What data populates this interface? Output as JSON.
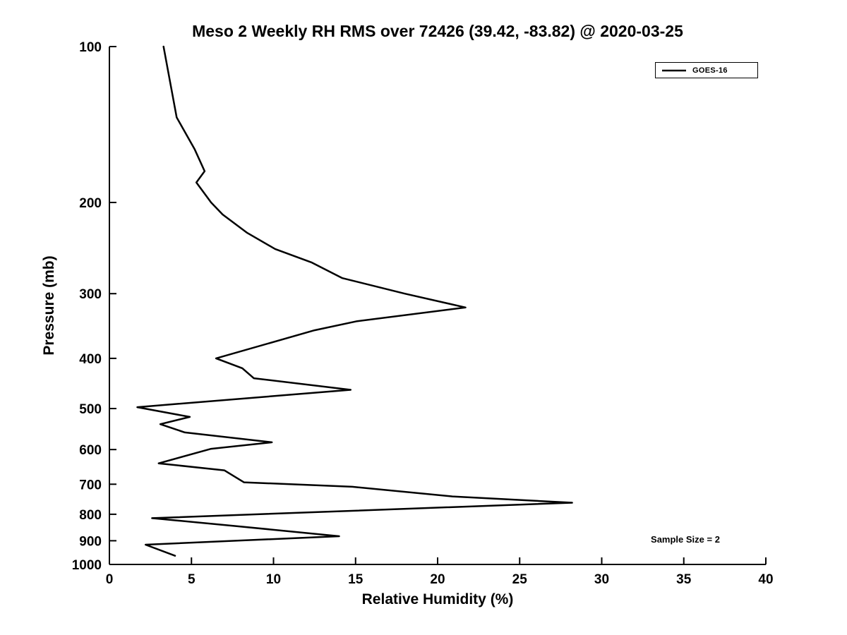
{
  "chart_data": {
    "type": "line",
    "title": "Meso 2 Weekly RH RMS over 72426 (39.42, -83.82) @ 2020-03-25",
    "xlabel": "Relative Humidity (%)",
    "ylabel": "Pressure (mb)",
    "xlim": [
      0,
      40
    ],
    "xticks": [
      0,
      5,
      10,
      15,
      20,
      25,
      30,
      35,
      40
    ],
    "ylim": [
      100,
      1000
    ],
    "yticks": [
      100,
      200,
      300,
      400,
      500,
      600,
      700,
      800,
      900,
      1000
    ],
    "yscale": "log",
    "y_axis_inverted": true,
    "grid": false,
    "legend_position": "top-right",
    "annotation": "Sample Size = 2",
    "line_color": "#000000",
    "background_color": "#ffffff",
    "series": [
      {
        "name": "GOES-16",
        "points_format": "[pressure_mb, rh_percent]",
        "points": [
          [
            100,
            3.3
          ],
          [
            137,
            4.1
          ],
          [
            158,
            5.2
          ],
          [
            174,
            5.8
          ],
          [
            183,
            5.3
          ],
          [
            200,
            6.2
          ],
          [
            211,
            6.9
          ],
          [
            229,
            8.4
          ],
          [
            246,
            10.1
          ],
          [
            261,
            12.3
          ],
          [
            280,
            14.2
          ],
          [
            300,
            18.0
          ],
          [
            319,
            21.7
          ],
          [
            339,
            15.1
          ],
          [
            353,
            12.5
          ],
          [
            400,
            6.5
          ],
          [
            418,
            8.1
          ],
          [
            437,
            8.8
          ],
          [
            460,
            14.7
          ],
          [
            497,
            1.7
          ],
          [
            519,
            4.9
          ],
          [
            536,
            3.1
          ],
          [
            556,
            4.6
          ],
          [
            581,
            9.9
          ],
          [
            598,
            6.2
          ],
          [
            638,
            3.0
          ],
          [
            658,
            7.0
          ],
          [
            694,
            8.2
          ],
          [
            708,
            14.8
          ],
          [
            739,
            20.9
          ],
          [
            760,
            28.2
          ],
          [
            814,
            2.6
          ],
          [
            843,
            7.7
          ],
          [
            882,
            14.0
          ],
          [
            916,
            2.2
          ],
          [
            962,
            4.0
          ]
        ]
      }
    ]
  }
}
